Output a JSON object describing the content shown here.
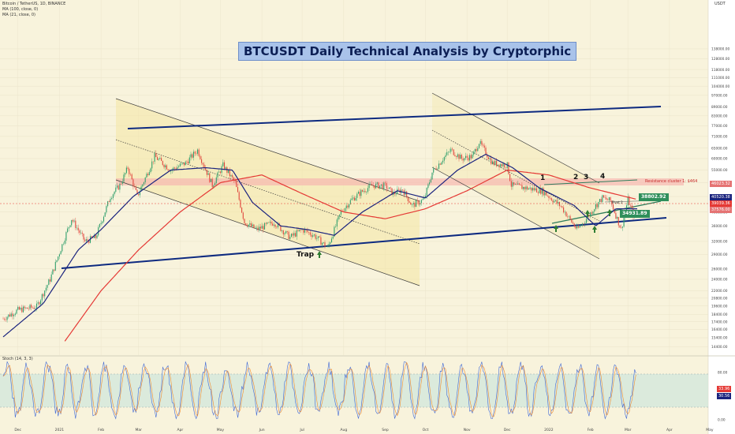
{
  "header": {
    "symbol_line": "Bitcoin / TetherUS, 1D, BINANCE",
    "ma1_line": "MA (100, close, 0)",
    "ma2_line": "MA (21, close, 0)",
    "currency": "USDT",
    "currency_code": "USDT"
  },
  "title": "BTCUSDT Daily Technical Analysis by Cryptorphic",
  "annotations": {
    "trap": "Trap",
    "resistance": "Resistance cluster 1: $464",
    "pivot": "Pivot 2",
    "box_upper": "38802.92",
    "box_lower": "34931.89",
    "wave1": "1",
    "wave2": "2",
    "wave3": "3",
    "wave4": "4"
  },
  "price_tags": [
    "46023.32",
    "40520.38",
    "39039.36",
    "37576.00"
  ],
  "stoch": {
    "label": "Stoch (14, 3, 3)",
    "tag_k": "33.96",
    "tag_d": "30.56"
  },
  "chart_data": {
    "type": "line",
    "title": "BTCUSDT Daily Technical Analysis by Cryptorphic",
    "y_scale": "log",
    "ylim": [
      13500,
      200000
    ],
    "y_ticks": [
      "138000.00",
      "128000.00",
      "118000.00",
      "111000.00",
      "104000.00",
      "97000.00",
      "89000.00",
      "83000.00",
      "77000.00",
      "71000.00",
      "65000.00",
      "60000.00",
      "55000.00",
      "50000.00",
      "45000.00",
      "40000.00",
      "36000.00",
      "32000.00",
      "29000.00",
      "26000.00",
      "24000.00",
      "22000.00",
      "20800.00",
      "19600.00",
      "18400.00",
      "17400.00",
      "16400.00",
      "15400.00",
      "14400.00"
    ],
    "x_ticks": [
      "Dec",
      "2021",
      "Feb",
      "Mar",
      "Apr",
      "May",
      "Jun",
      "Jul",
      "Aug",
      "Sep",
      "Oct",
      "Nov",
      "Dec",
      "2022",
      "Feb",
      "Mar",
      "Apr",
      "May"
    ],
    "x_start": "2020-11-20",
    "series": [
      {
        "name": "Bitcoin / TetherUS",
        "color": "#26a69a",
        "dates": [
          "2020-11-20",
          "2020-12-01",
          "2020-12-15",
          "2020-12-25",
          "2021-01-05",
          "2021-01-10",
          "2021-01-20",
          "2021-01-28",
          "2021-02-08",
          "2021-02-15",
          "2021-02-21",
          "2021-02-28",
          "2021-03-13",
          "2021-03-25",
          "2021-04-05",
          "2021-04-14",
          "2021-04-25",
          "2021-05-03",
          "2021-05-12",
          "2021-05-19",
          "2021-05-28",
          "2021-06-10",
          "2021-06-22",
          "2021-07-01",
          "2021-07-10",
          "2021-07-20",
          "2021-07-30",
          "2021-08-07",
          "2021-08-14",
          "2021-08-22",
          "2021-09-01",
          "2021-09-07",
          "2021-09-14",
          "2021-09-21",
          "2021-09-30",
          "2021-10-06",
          "2021-10-14",
          "2021-10-20",
          "2021-10-28",
          "2021-11-05",
          "2021-11-10",
          "2021-11-20",
          "2021-12-01",
          "2021-12-04",
          "2021-12-15",
          "2021-12-27",
          "2022-01-05",
          "2022-01-10",
          "2022-01-22",
          "2022-01-27",
          "2022-02-05",
          "2022-02-10",
          "2022-02-16",
          "2022-02-24",
          "2022-03-01",
          "2022-03-05",
          "2022-03-08"
        ],
        "values": [
          17800,
          19000,
          19500,
          24000,
          33000,
          38000,
          32000,
          33000,
          45000,
          49000,
          56000,
          45000,
          61000,
          55000,
          58000,
          64000,
          49000,
          57000,
          50000,
          37000,
          35000,
          37000,
          33000,
          35000,
          33500,
          30500,
          40000,
          44000,
          46500,
          49000,
          48800,
          46000,
          47500,
          42000,
          44000,
          54000,
          60000,
          64000,
          60000,
          61000,
          68000,
          58000,
          57000,
          49000,
          48000,
          47000,
          43500,
          41800,
          35000,
          37000,
          42000,
          44500,
          43500,
          35000,
          44000,
          39300,
          38800
        ]
      },
      {
        "name": "MA (100, close, 0)",
        "color": "#e53935",
        "dates": [
          "2021-01-05",
          "2021-02-01",
          "2021-03-01",
          "2021-04-01",
          "2021-05-01",
          "2021-06-01",
          "2021-07-01",
          "2021-08-01",
          "2021-09-01",
          "2021-10-01",
          "2021-11-01",
          "2021-12-01",
          "2022-01-01",
          "2022-02-01",
          "2022-03-08"
        ],
        "values": [
          15000,
          22000,
          30000,
          40000,
          50000,
          53000,
          46000,
          40000,
          38000,
          41000,
          47000,
          55000,
          53000,
          48000,
          44000
        ]
      },
      {
        "name": "MA (21, close, 0)",
        "color": "#1a237e",
        "dates": [
          "2020-11-20",
          "2020-12-20",
          "2021-01-15",
          "2021-02-01",
          "2021-02-25",
          "2021-03-25",
          "2021-04-20",
          "2021-05-10",
          "2021-05-25",
          "2021-06-15",
          "2021-07-05",
          "2021-07-25",
          "2021-08-15",
          "2021-09-10",
          "2021-10-01",
          "2021-10-25",
          "2021-11-15",
          "2021-12-05",
          "2021-12-25",
          "2022-01-20",
          "2022-02-05",
          "2022-02-20",
          "2022-03-08"
        ],
        "values": [
          15500,
          20000,
          30000,
          35000,
          45000,
          55000,
          56000,
          55000,
          43000,
          36000,
          35000,
          33500,
          40000,
          47000,
          44500,
          55000,
          62000,
          56000,
          48000,
          42000,
          36000,
          41000,
          41000
        ]
      }
    ],
    "stoch_ylim": [
      0,
      100
    ],
    "stoch_ticks": [
      "80.00",
      "40.00",
      "0.00"
    ],
    "stoch_band": [
      20,
      80
    ]
  }
}
